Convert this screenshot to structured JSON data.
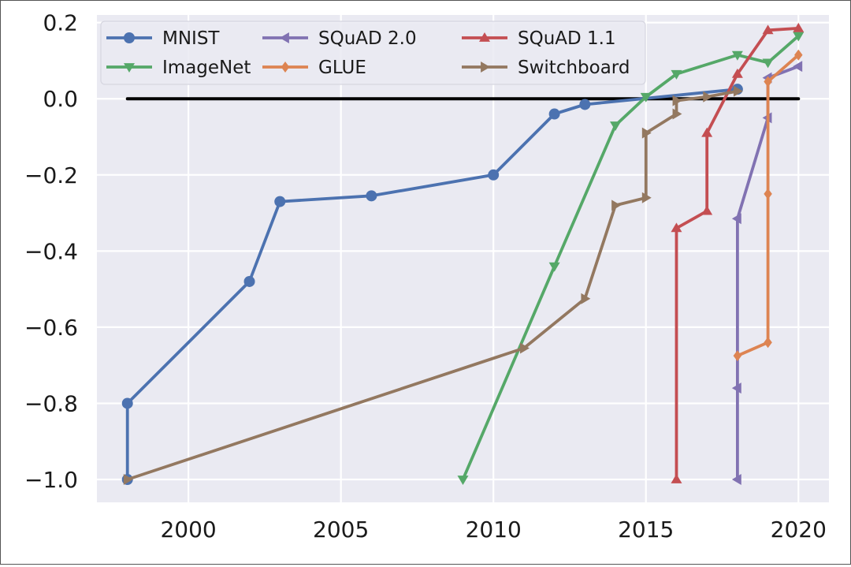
{
  "colors": {
    "plot_bg": "#eaeaf2",
    "grid": "#ffffff",
    "baseline": "#000000"
  },
  "chart_data": {
    "type": "line",
    "title": "",
    "xlabel": "",
    "ylabel": "",
    "xlim": [
      1997.0,
      2021.0
    ],
    "ylim": [
      -1.06,
      0.22
    ],
    "x_ticks": [
      2000,
      2005,
      2010,
      2015,
      2020
    ],
    "x_tick_labels": [
      "2000",
      "2005",
      "2010",
      "2015",
      "2020"
    ],
    "y_ticks": [
      0.2,
      0.0,
      -0.2,
      -0.4,
      -0.6,
      -0.8,
      -1.0
    ],
    "y_tick_labels": [
      "0.2",
      "0.0",
      "−0.2",
      "−0.4",
      "−0.6",
      "−0.8",
      "−1.0"
    ],
    "grid": true,
    "baseline": {
      "y": 0.0,
      "x_range": [
        1998,
        2020
      ]
    },
    "legend": {
      "placement": "top-left",
      "columns": 3
    },
    "series": [
      {
        "name": "MNIST",
        "color": "#4c72b0",
        "marker": "circle",
        "x": [
          1998,
          1998,
          2002,
          2003,
          2006,
          2010,
          2012,
          2013,
          2018
        ],
        "y": [
          -1.0,
          -0.8,
          -0.48,
          -0.27,
          -0.255,
          -0.2,
          -0.04,
          -0.015,
          0.025
        ]
      },
      {
        "name": "ImageNet",
        "color": "#55a868",
        "marker": "triangle-down",
        "x": [
          2009,
          2012,
          2014,
          2015,
          2016,
          2018,
          2019,
          2020
        ],
        "y": [
          -1.0,
          -0.44,
          -0.07,
          0.005,
          0.065,
          0.115,
          0.095,
          0.165
        ]
      },
      {
        "name": "SQuAD 2.0",
        "color": "#8172b2",
        "marker": "triangle-left",
        "x": [
          2018,
          2018,
          2018,
          2019,
          2019,
          2020
        ],
        "y": [
          -1.0,
          -0.76,
          -0.315,
          -0.05,
          0.055,
          0.085
        ]
      },
      {
        "name": "GLUE",
        "color": "#dd8452",
        "marker": "diamond",
        "x": [
          2018,
          2019,
          2019,
          2019,
          2020
        ],
        "y": [
          -0.675,
          -0.64,
          -0.25,
          0.045,
          0.115
        ]
      },
      {
        "name": "SQuAD 1.1",
        "color": "#c44e52",
        "marker": "triangle-up",
        "x": [
          2016,
          2016,
          2017,
          2017,
          2018,
          2019,
          2020
        ],
        "y": [
          -1.0,
          -0.34,
          -0.295,
          -0.09,
          0.065,
          0.18,
          0.185
        ]
      },
      {
        "name": "Switchboard",
        "color": "#937860",
        "marker": "triangle-right",
        "x": [
          1998,
          2011,
          2013,
          2014,
          2015,
          2015,
          2016,
          2016,
          2017,
          2018
        ],
        "y": [
          -1.0,
          -0.655,
          -0.525,
          -0.28,
          -0.26,
          -0.09,
          -0.04,
          -0.005,
          0.005,
          0.02
        ]
      }
    ]
  }
}
